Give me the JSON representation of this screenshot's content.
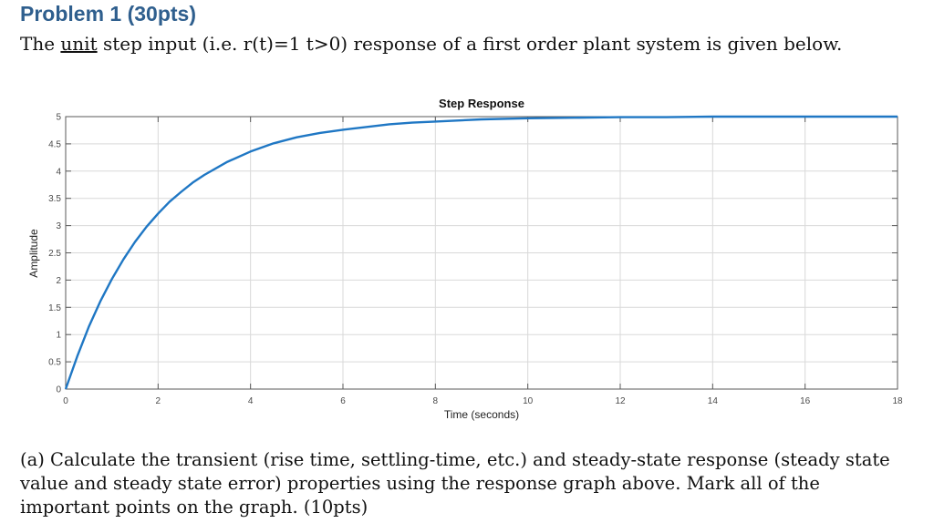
{
  "header": {
    "title": "Problem 1 (30pts)",
    "intro_before": "The ",
    "intro_underlined": "unit",
    "intro_after": " step input (i.e. r(t)=1 t>0) response of a first order plant system is given below."
  },
  "question": {
    "text": "(a) Calculate the transient (rise time, settling-time, etc.) and steady-state response (steady state value and steady state error) properties using the response graph above. Mark all of the important points on the graph. (10pts)"
  },
  "colors": {
    "series": "#1f77c4",
    "grid": "#d9d9d9",
    "axis": "#5a5a5a",
    "heading": "#2f5f8e"
  },
  "chart_data": {
    "type": "line",
    "title": "Step Response",
    "xlabel": "Time (seconds)",
    "ylabel": "Amplitude",
    "xlim": [
      0,
      18
    ],
    "ylim": [
      0,
      5
    ],
    "x_ticks": [
      0,
      2,
      4,
      6,
      8,
      10,
      12,
      14,
      16,
      18
    ],
    "y_ticks": [
      0,
      0.5,
      1,
      1.5,
      2,
      2.5,
      3,
      3.5,
      4,
      4.5,
      5
    ],
    "y_tick_labels": [
      "0",
      "0.5",
      "1",
      "1.5",
      "2",
      "2.5",
      "3",
      "3.5",
      "4",
      "4.5",
      "5"
    ],
    "grid": true,
    "series": [
      {
        "x": [
          0,
          0.25,
          0.5,
          0.75,
          1,
          1.25,
          1.5,
          1.75,
          2,
          2.25,
          2.5,
          2.75,
          3,
          3.5,
          4,
          4.5,
          5,
          5.5,
          6,
          6.5,
          7,
          7.5,
          8,
          9,
          10,
          11,
          12,
          13,
          14,
          15,
          16,
          17,
          18
        ],
        "values": [
          0,
          0.6,
          1.14,
          1.61,
          2.02,
          2.38,
          2.7,
          2.98,
          3.22,
          3.44,
          3.62,
          3.79,
          3.93,
          4.17,
          4.36,
          4.51,
          4.62,
          4.7,
          4.76,
          4.81,
          4.86,
          4.89,
          4.91,
          4.95,
          4.97,
          4.98,
          4.99,
          4.99,
          5.0,
          5.0,
          5.0,
          5.0,
          5.0
        ]
      }
    ]
  }
}
